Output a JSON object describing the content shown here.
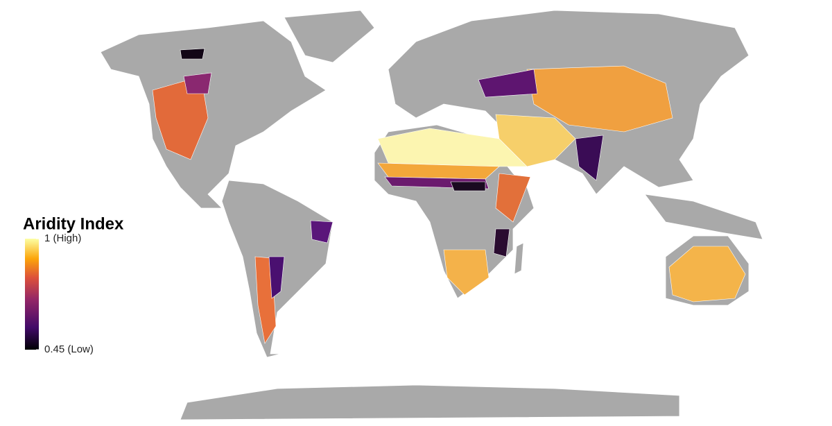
{
  "legend": {
    "title": "Aridity Index",
    "max": {
      "value": 1,
      "label": "1 (High)"
    },
    "min": {
      "value": 0.45,
      "label": "0.45 (Low)"
    }
  }
}
